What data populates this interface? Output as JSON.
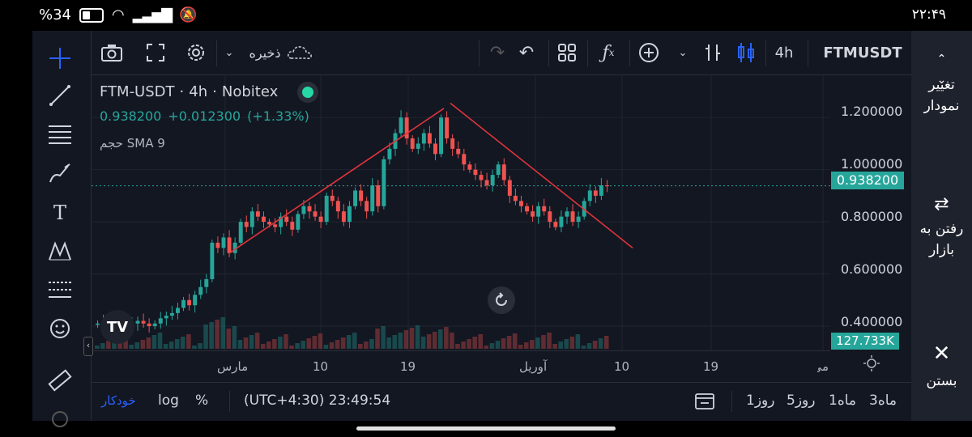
{
  "status_bar": {
    "battery": "34",
    "battery_pct_sign": "%",
    "time": "۲۲:۴۹"
  },
  "toolbar": {
    "symbol": "FTMUSDT",
    "interval": "4h",
    "save_label": "ذخیره",
    "icons": [
      "camera-icon",
      "fullscreen-icon",
      "settings-icon",
      "chevron-down-icon",
      "cloud-icon",
      "redo-icon",
      "undo-icon",
      "layout-icon",
      "fx-icon",
      "plus-circle-icon",
      "bar-style-icon",
      "candle-style-icon"
    ]
  },
  "left_tools": [
    "crosshair-icon",
    "trend-line-icon",
    "fib-icon",
    "brush-icon",
    "text-icon",
    "pattern-icon",
    "measure-lines-icon",
    "emoji-icon",
    "ruler-icon",
    "magnet-icon"
  ],
  "legend": {
    "pair": "FTM-USDT",
    "interval": "4h",
    "exchange": "Nobitex",
    "price": "0.938200",
    "change": "+0.012300",
    "change_pct": "(+1.33%)",
    "indicator": "SMA 9",
    "indicator_prefix": "حجم"
  },
  "price_axis": {
    "labels": [
      "1.200000",
      "1.000000",
      "0.800000",
      "0.600000",
      "0.400000"
    ],
    "current_price": "0.938200",
    "volume_badge": "127.733K"
  },
  "time_axis": {
    "labels": [
      "مارس",
      "10",
      "19",
      "آوریل",
      "10",
      "19",
      "می"
    ]
  },
  "bottom_bar": {
    "auto_label": "خودکار",
    "log_label": "log",
    "pct_label": "%",
    "clock": "(UTC+4:30) 23:49:54",
    "ranges": [
      "1روز",
      "5روز",
      "1ماه",
      "3ماه"
    ]
  },
  "right_panel": {
    "change_chart": "تغییر نمودار",
    "go_market": "رفتن به بازار",
    "close": "بستن"
  },
  "colors": {
    "up": "#26a69a",
    "down": "#ef5350",
    "bg": "#131722",
    "trendline": "#e0343b",
    "accent": "#2962ff"
  },
  "chart_data": {
    "type": "candlestick",
    "x_range": [
      "مارس",
      "می"
    ],
    "ylim": [
      0.4,
      1.3
    ],
    "series": [
      {
        "points": [
          [
            0.41
          ],
          [
            0.42
          ],
          [
            0.41
          ],
          [
            0.43
          ],
          [
            0.42
          ],
          [
            0.4
          ],
          [
            0.41
          ],
          [
            0.42
          ],
          [
            0.41
          ],
          [
            0.4
          ],
          [
            0.41
          ],
          [
            0.43
          ],
          [
            0.44
          ],
          [
            0.45
          ],
          [
            0.47
          ],
          [
            0.5
          ],
          [
            0.48
          ],
          [
            0.52
          ],
          [
            0.55
          ],
          [
            0.58
          ],
          [
            0.72
          ],
          [
            0.7
          ],
          [
            0.74
          ],
          [
            0.68
          ],
          [
            0.72
          ],
          [
            0.8
          ],
          [
            0.78
          ],
          [
            0.84
          ],
          [
            0.82
          ],
          [
            0.8
          ],
          [
            0.79
          ],
          [
            0.78
          ],
          [
            0.82
          ],
          [
            0.8
          ],
          [
            0.77
          ],
          [
            0.83
          ],
          [
            0.86
          ],
          [
            0.84
          ],
          [
            0.82
          ],
          [
            0.8
          ],
          [
            0.9
          ],
          [
            0.88
          ],
          [
            0.84
          ],
          [
            0.8
          ],
          [
            0.86
          ],
          [
            0.92
          ],
          [
            0.88
          ],
          [
            0.84
          ],
          [
            0.94
          ],
          [
            0.86
          ],
          [
            1.04
          ],
          [
            1.08
          ],
          [
            1.14
          ],
          [
            1.2
          ],
          [
            1.12
          ],
          [
            1.08
          ],
          [
            1.1
          ],
          [
            1.14
          ],
          [
            1.1
          ],
          [
            1.06
          ],
          [
            1.2
          ],
          [
            1.12
          ],
          [
            1.08
          ],
          [
            1.06
          ],
          [
            1.02
          ],
          [
            1.0
          ],
          [
            0.98
          ],
          [
            0.96
          ],
          [
            0.94
          ],
          [
            0.98
          ],
          [
            1.02
          ],
          [
            0.96
          ],
          [
            0.9
          ],
          [
            0.88
          ],
          [
            0.86
          ],
          [
            0.84
          ],
          [
            0.82
          ],
          [
            0.86
          ],
          [
            0.84
          ],
          [
            0.8
          ],
          [
            0.78
          ],
          [
            0.82
          ],
          [
            0.84
          ],
          [
            0.8
          ],
          [
            0.82
          ],
          [
            0.88
          ],
          [
            0.92
          ],
          [
            0.9
          ],
          [
            0.94
          ],
          [
            0.938
          ]
        ]
      }
    ],
    "annotations": [
      "ascending-trendline",
      "descending-trendline"
    ]
  }
}
